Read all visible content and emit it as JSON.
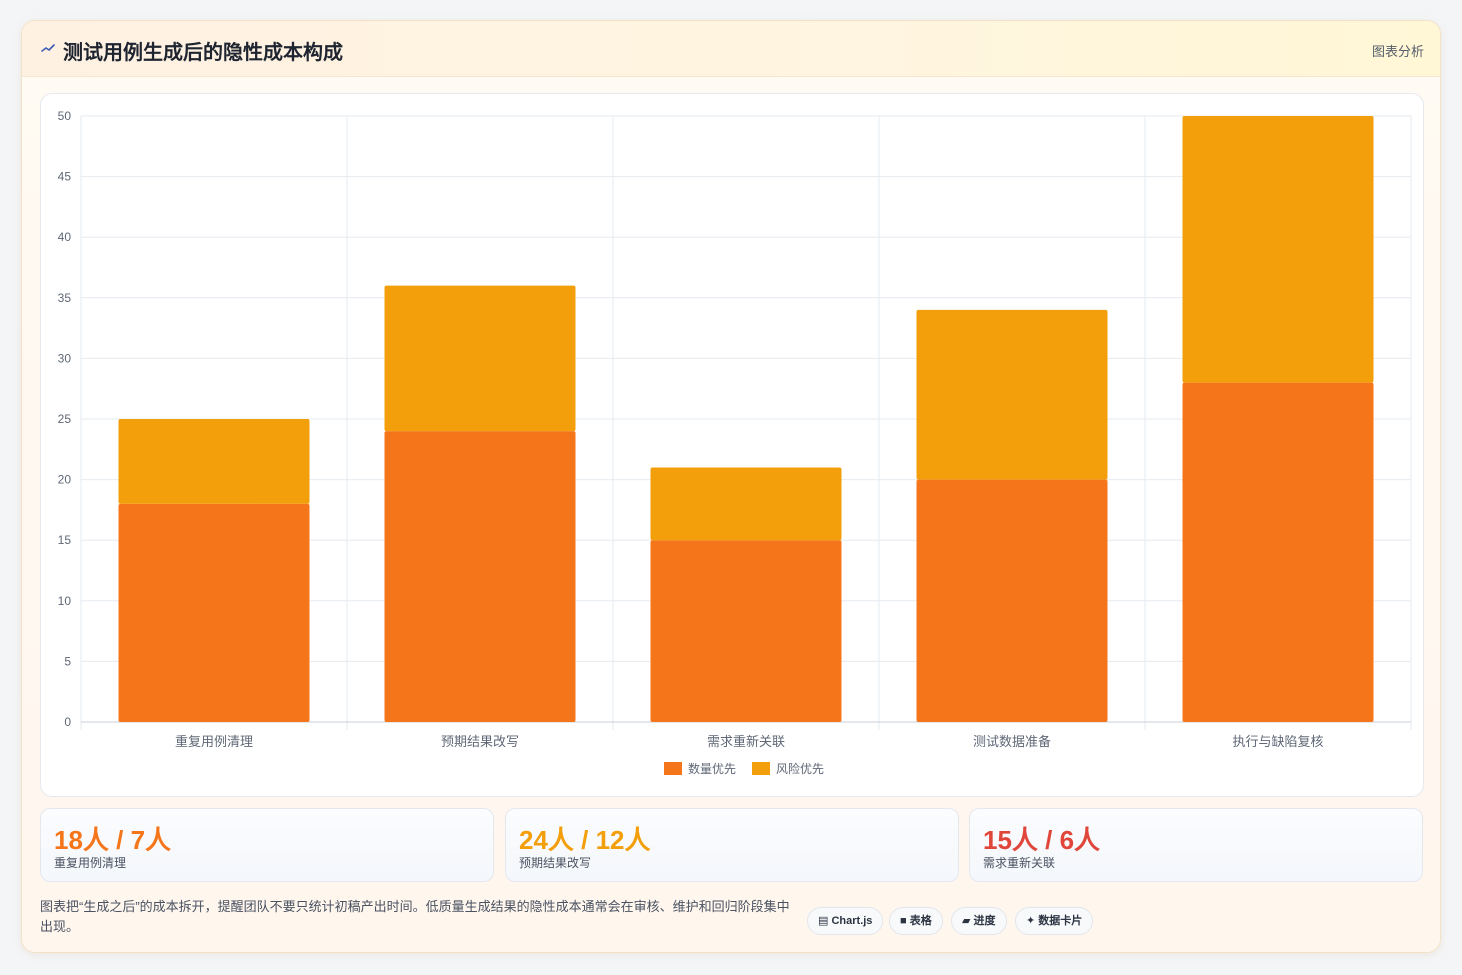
{
  "header": {
    "title": "测试用例生成后的隐性成本构成",
    "tag": "图表分析"
  },
  "chart_data": {
    "type": "bar",
    "stacked": true,
    "categories": [
      "重复用例清理",
      "预期结果改写",
      "需求重新关联",
      "测试数据准备",
      "执行与缺陷复核"
    ],
    "series": [
      {
        "name": "数量优先",
        "values": [
          18,
          24,
          15,
          20,
          28
        ],
        "color": "#f5761a"
      },
      {
        "name": "风险优先",
        "values": [
          7,
          12,
          6,
          14,
          22
        ],
        "color": "#f39f0c"
      }
    ],
    "ylim": [
      0,
      50
    ],
    "yticks": [
      "0",
      "5",
      "10",
      "15",
      "20",
      "25",
      "30",
      "35",
      "40",
      "45",
      "50"
    ],
    "grid": true,
    "legend": "bottom"
  },
  "stats": [
    {
      "value": "18人 / 7人",
      "label": "重复用例清理",
      "color": "#f5761a"
    },
    {
      "value": "24人 / 12人",
      "label": "预期结果改写",
      "color": "#f39f0c"
    },
    {
      "value": "15人 / 6人",
      "label": "需求重新关联",
      "color": "#e0463a"
    }
  ],
  "note": "图表把“生成之后”的成本拆开，提醒团队不要只统计初稿产出时间。低质量生成结果的隐性成本通常会在审核、维护和回归阶段集中出现。",
  "chips": [
    {
      "icon": "chart-icon",
      "label": "Chart.js"
    },
    {
      "icon": "table-icon",
      "label": "表格"
    },
    {
      "icon": "progress-icon",
      "label": "进度"
    },
    {
      "icon": "sparkle-icon",
      "label": "数据卡片"
    }
  ],
  "colors": {
    "axis_text": "#5f6776",
    "grid": "#e6ebf0",
    "accent": "#f5761a"
  }
}
